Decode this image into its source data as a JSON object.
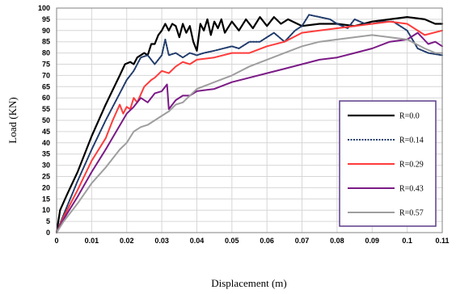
{
  "chart_data": {
    "type": "line",
    "xlabel": "Displacement (m)",
    "ylabel": "Load (KN)",
    "xlim": [
      0,
      0.11
    ],
    "ylim": [
      0,
      100
    ],
    "x_ticks": [
      "0",
      "0.01",
      "0.02",
      "0.03",
      "0.04",
      "0.05",
      "0.06",
      "0.07",
      "0.08",
      "0.09",
      "0.1",
      "0.11"
    ],
    "y_ticks": [
      "0",
      "5",
      "10",
      "15",
      "20",
      "25",
      "30",
      "35",
      "40",
      "45",
      "50",
      "55",
      "60",
      "65",
      "70",
      "75",
      "80",
      "85",
      "90",
      "95",
      "100"
    ],
    "grid": true,
    "legend_position": "right",
    "series": [
      {
        "name": "R=0.0",
        "color": "#000000",
        "dash": "solid",
        "points": [
          [
            0,
            0
          ],
          [
            0.001,
            10
          ],
          [
            0.003,
            17
          ],
          [
            0.006,
            27
          ],
          [
            0.01,
            43
          ],
          [
            0.014,
            57
          ],
          [
            0.018,
            70
          ],
          [
            0.0195,
            75
          ],
          [
            0.021,
            76
          ],
          [
            0.022,
            75
          ],
          [
            0.023,
            78
          ],
          [
            0.025,
            80
          ],
          [
            0.026,
            79
          ],
          [
            0.027,
            84
          ],
          [
            0.028,
            84
          ],
          [
            0.029,
            88
          ],
          [
            0.03,
            90
          ],
          [
            0.031,
            93
          ],
          [
            0.032,
            90
          ],
          [
            0.033,
            93
          ],
          [
            0.034,
            92
          ],
          [
            0.035,
            87
          ],
          [
            0.036,
            93
          ],
          [
            0.037,
            89
          ],
          [
            0.038,
            92
          ],
          [
            0.039,
            85
          ],
          [
            0.04,
            81
          ],
          [
            0.041,
            93
          ],
          [
            0.042,
            90
          ],
          [
            0.043,
            95
          ],
          [
            0.044,
            88
          ],
          [
            0.045,
            94
          ],
          [
            0.046,
            91
          ],
          [
            0.047,
            95
          ],
          [
            0.048,
            89
          ],
          [
            0.05,
            94
          ],
          [
            0.052,
            90
          ],
          [
            0.054,
            95
          ],
          [
            0.056,
            91
          ],
          [
            0.058,
            96
          ],
          [
            0.06,
            92
          ],
          [
            0.062,
            96
          ],
          [
            0.064,
            93
          ],
          [
            0.066,
            95
          ],
          [
            0.07,
            92
          ],
          [
            0.075,
            93
          ],
          [
            0.08,
            93
          ],
          [
            0.085,
            92
          ],
          [
            0.09,
            94
          ],
          [
            0.095,
            95
          ],
          [
            0.1,
            96
          ],
          [
            0.105,
            95
          ],
          [
            0.108,
            93
          ],
          [
            0.11,
            93
          ]
        ]
      },
      {
        "name": "R=0.14",
        "color": "#1f3a6b",
        "dash": "dotted",
        "points": [
          [
            0,
            0
          ],
          [
            0.002,
            8
          ],
          [
            0.006,
            23
          ],
          [
            0.01,
            37
          ],
          [
            0.014,
            50
          ],
          [
            0.018,
            62
          ],
          [
            0.02,
            68
          ],
          [
            0.022,
            72
          ],
          [
            0.024,
            78
          ],
          [
            0.026,
            79
          ],
          [
            0.028,
            75
          ],
          [
            0.03,
            79
          ],
          [
            0.031,
            86
          ],
          [
            0.032,
            79
          ],
          [
            0.034,
            80
          ],
          [
            0.036,
            78
          ],
          [
            0.038,
            80
          ],
          [
            0.04,
            79
          ],
          [
            0.042,
            80
          ],
          [
            0.045,
            81
          ],
          [
            0.05,
            83
          ],
          [
            0.052,
            82
          ],
          [
            0.055,
            85
          ],
          [
            0.058,
            85
          ],
          [
            0.06,
            87
          ],
          [
            0.062,
            89
          ],
          [
            0.065,
            85
          ],
          [
            0.068,
            90
          ],
          [
            0.07,
            92
          ],
          [
            0.072,
            97
          ],
          [
            0.075,
            96
          ],
          [
            0.078,
            95
          ],
          [
            0.08,
            93
          ],
          [
            0.083,
            91
          ],
          [
            0.085,
            95
          ],
          [
            0.088,
            93
          ],
          [
            0.09,
            93
          ],
          [
            0.093,
            94
          ],
          [
            0.096,
            94
          ],
          [
            0.1,
            90
          ],
          [
            0.103,
            82
          ],
          [
            0.106,
            80
          ],
          [
            0.11,
            79
          ]
        ]
      },
      {
        "name": "R=0.29",
        "color": "#ff3b3b",
        "dash": "solid",
        "points": [
          [
            0,
            0
          ],
          [
            0.002,
            7
          ],
          [
            0.006,
            19
          ],
          [
            0.01,
            32
          ],
          [
            0.014,
            42
          ],
          [
            0.016,
            50
          ],
          [
            0.018,
            57
          ],
          [
            0.019,
            53
          ],
          [
            0.02,
            56
          ],
          [
            0.021,
            55
          ],
          [
            0.022,
            60
          ],
          [
            0.023,
            58
          ],
          [
            0.025,
            65
          ],
          [
            0.027,
            68
          ],
          [
            0.028,
            69
          ],
          [
            0.03,
            72
          ],
          [
            0.032,
            71
          ],
          [
            0.034,
            74
          ],
          [
            0.036,
            76
          ],
          [
            0.038,
            75
          ],
          [
            0.04,
            77
          ],
          [
            0.045,
            78
          ],
          [
            0.05,
            80
          ],
          [
            0.055,
            80
          ],
          [
            0.06,
            83
          ],
          [
            0.065,
            85
          ],
          [
            0.07,
            89
          ],
          [
            0.075,
            90
          ],
          [
            0.08,
            91
          ],
          [
            0.085,
            92
          ],
          [
            0.09,
            93
          ],
          [
            0.095,
            94
          ],
          [
            0.1,
            93
          ],
          [
            0.105,
            88
          ],
          [
            0.11,
            90
          ]
        ]
      },
      {
        "name": "R=0.43",
        "color": "#7b1a86",
        "dash": "solid",
        "points": [
          [
            0,
            0
          ],
          [
            0.002,
            6
          ],
          [
            0.006,
            16
          ],
          [
            0.01,
            27
          ],
          [
            0.014,
            37
          ],
          [
            0.017,
            45
          ],
          [
            0.02,
            53
          ],
          [
            0.022,
            56
          ],
          [
            0.024,
            60
          ],
          [
            0.026,
            58
          ],
          [
            0.028,
            62
          ],
          [
            0.03,
            63
          ],
          [
            0.0315,
            66
          ],
          [
            0.032,
            55
          ],
          [
            0.034,
            59
          ],
          [
            0.036,
            61
          ],
          [
            0.038,
            61
          ],
          [
            0.04,
            63
          ],
          [
            0.045,
            64
          ],
          [
            0.05,
            67
          ],
          [
            0.055,
            69
          ],
          [
            0.06,
            71
          ],
          [
            0.065,
            73
          ],
          [
            0.07,
            75
          ],
          [
            0.075,
            77
          ],
          [
            0.08,
            78
          ],
          [
            0.085,
            80
          ],
          [
            0.09,
            82
          ],
          [
            0.095,
            85
          ],
          [
            0.1,
            86
          ],
          [
            0.103,
            89
          ],
          [
            0.106,
            84
          ],
          [
            0.108,
            85
          ],
          [
            0.11,
            83
          ]
        ]
      },
      {
        "name": "R=0.57",
        "color": "#9e9e9e",
        "dash": "solid",
        "points": [
          [
            0,
            0
          ],
          [
            0.002,
            5
          ],
          [
            0.006,
            13
          ],
          [
            0.01,
            22
          ],
          [
            0.014,
            29
          ],
          [
            0.018,
            37
          ],
          [
            0.02,
            40
          ],
          [
            0.022,
            45
          ],
          [
            0.024,
            47
          ],
          [
            0.026,
            48
          ],
          [
            0.028,
            50
          ],
          [
            0.03,
            52
          ],
          [
            0.032,
            54
          ],
          [
            0.034,
            57
          ],
          [
            0.036,
            58
          ],
          [
            0.04,
            64
          ],
          [
            0.045,
            67
          ],
          [
            0.05,
            70
          ],
          [
            0.055,
            74
          ],
          [
            0.06,
            77
          ],
          [
            0.065,
            80
          ],
          [
            0.07,
            83
          ],
          [
            0.075,
            85
          ],
          [
            0.08,
            86
          ],
          [
            0.085,
            87
          ],
          [
            0.09,
            88
          ],
          [
            0.095,
            87
          ],
          [
            0.1,
            86
          ],
          [
            0.105,
            82
          ],
          [
            0.108,
            80
          ],
          [
            0.11,
            80
          ]
        ]
      }
    ]
  }
}
